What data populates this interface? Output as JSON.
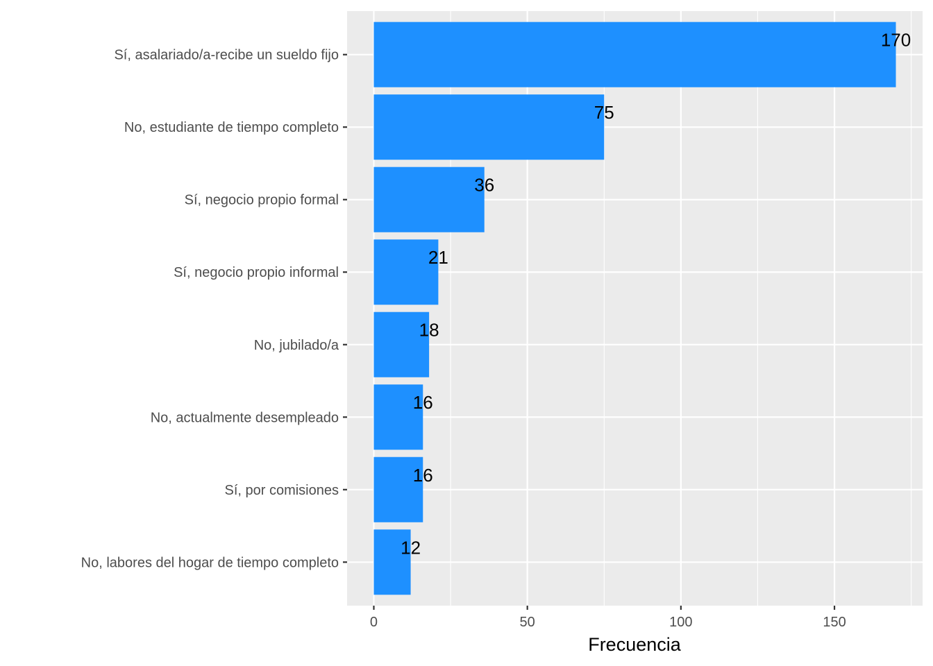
{
  "chart_data": {
    "type": "bar",
    "orientation": "horizontal",
    "categories": [
      "Sí, asalariado/a-recibe un sueldo fijo",
      "No, estudiante de tiempo completo",
      "Sí, negocio propio formal",
      "Sí, negocio propio informal",
      "No, jubilado/a",
      "No, actualmente desempleado",
      "Sí, por comisiones",
      "No, labores del hogar de tiempo completo"
    ],
    "values": [
      170,
      75,
      36,
      21,
      18,
      16,
      16,
      12
    ],
    "xlabel": "Frecuencia",
    "ylabel": "",
    "xlim": [
      -8.7,
      178.7
    ],
    "xticks": [
      0,
      50,
      100,
      150
    ],
    "grid": true,
    "data_labels": true,
    "colors": {
      "bar": "#1E90FF",
      "panel": "#EBEBEB",
      "grid": "#FFFFFF",
      "tick_text": "#4D4D4D",
      "label_text": "#000000"
    }
  }
}
